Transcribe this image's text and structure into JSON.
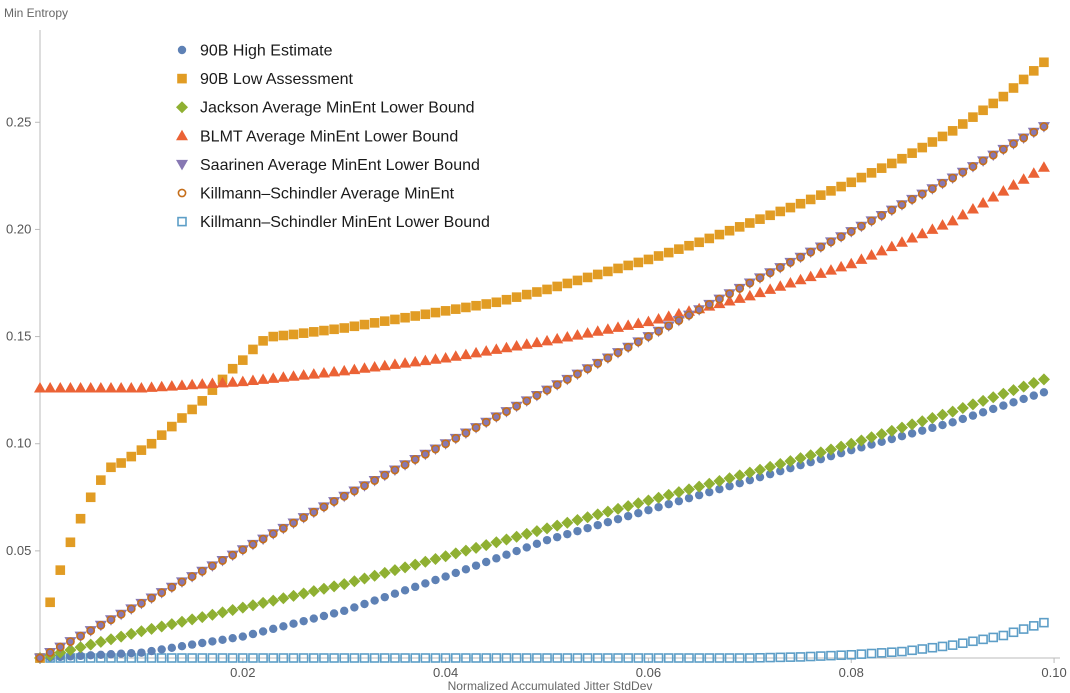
{
  "chart_data": {
    "type": "scatter",
    "title": "",
    "xlabel": "Normalized Accumulated Jitter StdDev",
    "ylabel": "Min Entropy",
    "xlim": [
      0,
      0.1
    ],
    "ylim": [
      0,
      0.28
    ],
    "x_ticks": [
      {
        "value": 0.02,
        "label": "0.02"
      },
      {
        "value": 0.04,
        "label": "0.04"
      },
      {
        "value": 0.06,
        "label": "0.06"
      },
      {
        "value": 0.08,
        "label": "0.08"
      },
      {
        "value": 0.1,
        "label": "0.10"
      }
    ],
    "y_ticks": [
      {
        "value": 0.05,
        "label": "0.05"
      },
      {
        "value": 0.1,
        "label": "0.10"
      },
      {
        "value": 0.15,
        "label": "0.15"
      },
      {
        "value": 0.2,
        "label": "0.20"
      },
      {
        "value": 0.25,
        "label": "0.25"
      }
    ],
    "grid": false,
    "legend_position": "top-left",
    "x_sampling": {
      "start": 0,
      "end": 0.099,
      "step": 0.001
    },
    "series": [
      {
        "name": "90B High Estimate",
        "marker": "circle",
        "color": "#5e81b5",
        "x": [
          0,
          0.01,
          0.02,
          0.03,
          0.04,
          0.05,
          0.06,
          0.07,
          0.08,
          0.09,
          0.099
        ],
        "y": [
          0,
          0.0025,
          0.01,
          0.022,
          0.038,
          0.055,
          0.069,
          0.083,
          0.097,
          0.11,
          0.124
        ]
      },
      {
        "name": "90B Low Assessment",
        "marker": "square",
        "color": "#e19c24",
        "x": [
          0,
          0.001,
          0.002,
          0.003,
          0.004,
          0.005,
          0.006,
          0.007,
          0.008,
          0.009,
          0.01,
          0.011,
          0.012,
          0.013,
          0.014,
          0.015,
          0.016,
          0.017,
          0.018,
          0.019,
          0.02,
          0.021,
          0.022,
          0.023,
          0.025,
          0.03,
          0.035,
          0.04,
          0.045,
          0.05,
          0.055,
          0.06,
          0.065,
          0.07,
          0.075,
          0.08,
          0.085,
          0.09,
          0.095,
          0.099
        ],
        "y": [
          0,
          0.026,
          0.041,
          0.054,
          0.065,
          0.075,
          0.083,
          0.089,
          0.091,
          0.094,
          0.097,
          0.1,
          0.104,
          0.108,
          0.112,
          0.116,
          0.12,
          0.125,
          0.13,
          0.135,
          0.139,
          0.144,
          0.148,
          0.15,
          0.151,
          0.154,
          0.158,
          0.162,
          0.166,
          0.172,
          0.179,
          0.186,
          0.194,
          0.203,
          0.212,
          0.222,
          0.233,
          0.246,
          0.262,
          0.278
        ]
      },
      {
        "name": "Jackson Average MinEnt Lower Bound",
        "marker": "diamond",
        "color": "#8fb032",
        "x": [
          0,
          0.01,
          0.02,
          0.03,
          0.04,
          0.05,
          0.06,
          0.07,
          0.08,
          0.09,
          0.099
        ],
        "y": [
          0,
          0.0125,
          0.0235,
          0.0345,
          0.0475,
          0.0605,
          0.0735,
          0.0865,
          0.1,
          0.115,
          0.13
        ]
      },
      {
        "name": "BLMT Average MinEnt Lower Bound",
        "marker": "triangle-up",
        "color": "#eb6235",
        "x": [
          0,
          0.01,
          0.02,
          0.03,
          0.04,
          0.05,
          0.06,
          0.07,
          0.08,
          0.09,
          0.099
        ],
        "y": [
          0.126,
          0.126,
          0.129,
          0.134,
          0.14,
          0.148,
          0.157,
          0.169,
          0.184,
          0.204,
          0.229
        ]
      },
      {
        "name": "Saarinen Average MinEnt Lower Bound",
        "marker": "triangle-down",
        "color": "#8778b3",
        "x": [
          0,
          0.01,
          0.02,
          0.03,
          0.04,
          0.05,
          0.06,
          0.07,
          0.08,
          0.09,
          0.099
        ],
        "y": [
          0,
          0.0255,
          0.0505,
          0.0755,
          0.1,
          0.125,
          0.15,
          0.175,
          0.199,
          0.224,
          0.248
        ]
      },
      {
        "name": "Killmann–Schindler Average MinEnt",
        "marker": "circle-open",
        "color": "#c56e1a",
        "x": [
          0,
          0.01,
          0.02,
          0.03,
          0.04,
          0.05,
          0.06,
          0.07,
          0.08,
          0.09,
          0.099
        ],
        "y": [
          0,
          0.0255,
          0.0505,
          0.0755,
          0.1,
          0.125,
          0.15,
          0.175,
          0.199,
          0.224,
          0.248
        ]
      },
      {
        "name": "Killmann–Schindler MinEnt Lower Bound",
        "marker": "square-open",
        "color": "#5d9ec7",
        "x": [
          0,
          0.07,
          0.075,
          0.08,
          0.085,
          0.09,
          0.095,
          0.099
        ],
        "y": [
          0,
          0,
          0.0005,
          0.0015,
          0.003,
          0.006,
          0.0105,
          0.0165
        ]
      }
    ]
  }
}
